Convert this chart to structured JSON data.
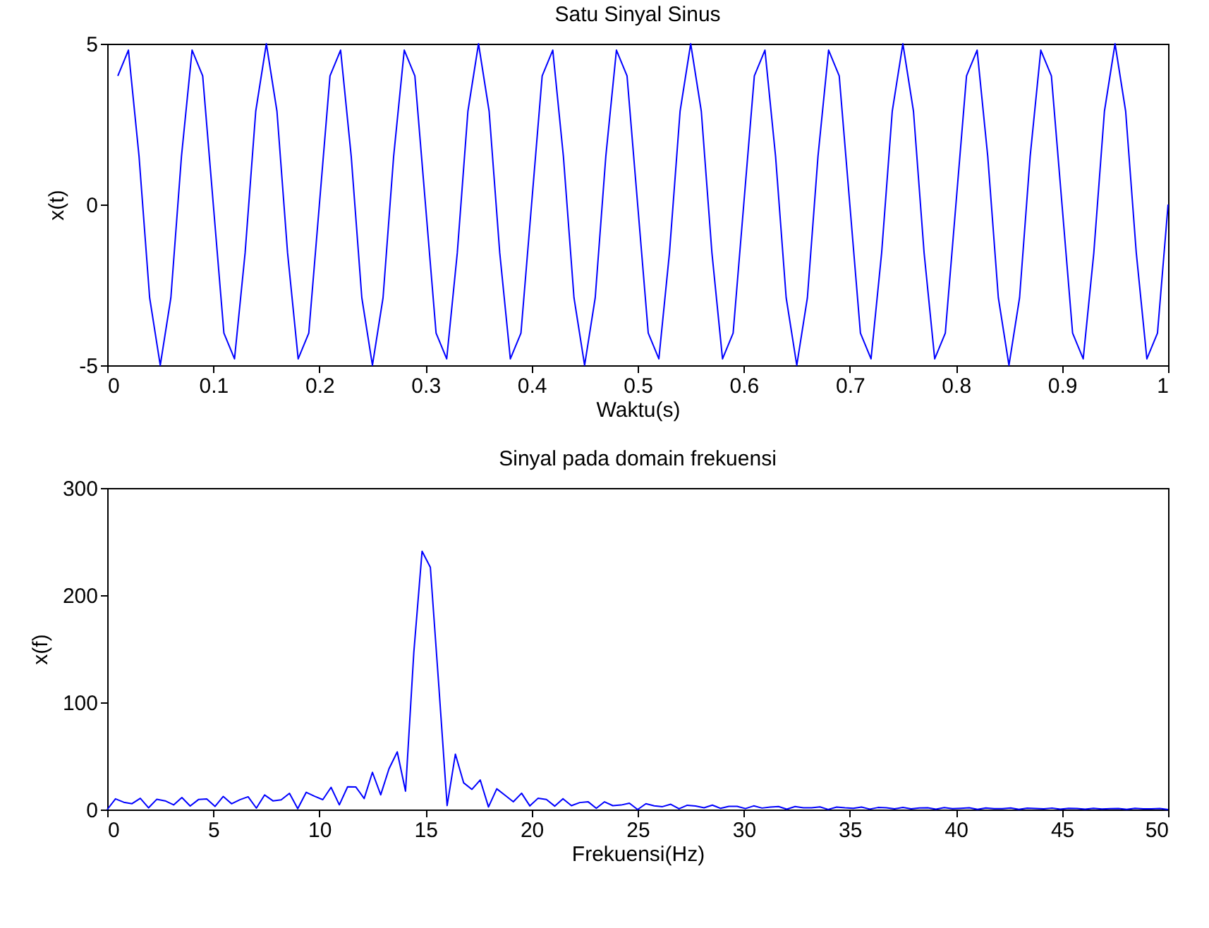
{
  "chart_data": [
    {
      "type": "line",
      "title": "Satu Sinyal Sinus",
      "xlabel": "Waktu(s)",
      "ylabel": "x(t)",
      "x": [
        0.01,
        0.02,
        0.03,
        0.04,
        0.05,
        0.06,
        0.07,
        0.08,
        0.09,
        0.1,
        0.11,
        0.12,
        0.13,
        0.14,
        0.15,
        0.16,
        0.17,
        0.18,
        0.19,
        0.2,
        0.21,
        0.22,
        0.23,
        0.24,
        0.25,
        0.26,
        0.27,
        0.28,
        0.29,
        0.3,
        0.31,
        0.32,
        0.33,
        0.34,
        0.35,
        0.36,
        0.37,
        0.38,
        0.39,
        0.4,
        0.41,
        0.42,
        0.43,
        0.44,
        0.45,
        0.46,
        0.47,
        0.48,
        0.49,
        0.5,
        0.51,
        0.52,
        0.53,
        0.54,
        0.55,
        0.56,
        0.57,
        0.58,
        0.59,
        0.6,
        0.61,
        0.62,
        0.63,
        0.64,
        0.65,
        0.66,
        0.67,
        0.68,
        0.69,
        0.7,
        0.71,
        0.72,
        0.73,
        0.74,
        0.75,
        0.76,
        0.77,
        0.78,
        0.79,
        0.8,
        0.81,
        0.82,
        0.83,
        0.84,
        0.85,
        0.86,
        0.87,
        0.88,
        0.89,
        0.9,
        0.91,
        0.92,
        0.93,
        0.94,
        0.95,
        0.96,
        0.97,
        0.98,
        0.99,
        1.0
      ],
      "series": [
        {
          "color": "#0000ff",
          "values": [
            4.0,
            4.8,
            1.5,
            -2.9,
            -5,
            -2.9,
            1.5,
            4.8,
            4.0,
            0,
            -4.0,
            -4.8,
            -1.5,
            2.9,
            5,
            2.9,
            -1.5,
            -4.8,
            -4.0,
            0,
            4.0,
            4.8,
            1.5,
            -2.9,
            -5,
            -2.9,
            1.5,
            4.8,
            4.0,
            0,
            -4.0,
            -4.8,
            -1.5,
            2.9,
            5,
            2.9,
            -1.5,
            -4.8,
            -4.0,
            0,
            4.0,
            4.8,
            1.5,
            -2.9,
            -5,
            -2.9,
            1.5,
            4.8,
            4.0,
            0,
            -4.0,
            -4.8,
            -1.5,
            2.9,
            5,
            2.9,
            -1.5,
            -4.8,
            -4.0,
            0,
            4.0,
            4.8,
            1.5,
            -2.9,
            -5,
            -2.9,
            1.5,
            4.8,
            4.0,
            0,
            -4.0,
            -4.8,
            -1.5,
            2.9,
            5,
            2.9,
            -1.5,
            -4.8,
            -4.0,
            0,
            4.0,
            4.8,
            1.5,
            -2.9,
            -5,
            -2.9,
            1.5,
            4.8,
            4.0,
            0,
            -4.0,
            -4.8,
            -1.5,
            2.9,
            5,
            2.9,
            -1.5,
            -4.8,
            -4.0,
            0
          ]
        }
      ],
      "xlim": [
        0,
        1
      ],
      "xticks": [
        0,
        0.1,
        0.2,
        0.3,
        0.4,
        0.5,
        0.6,
        0.7,
        0.8,
        0.9,
        1
      ],
      "ylim": [
        -5,
        5
      ],
      "yticks": [
        -5,
        0,
        5
      ],
      "legend": false
    },
    {
      "type": "line",
      "title": "Sinyal pada domain frekuensi",
      "xlabel": "Frekuensi(Hz)",
      "ylabel": "x(f)",
      "x": [
        0,
        0.39,
        0.78,
        1.17,
        1.56,
        1.95,
        2.34,
        2.73,
        3.13,
        3.52,
        3.91,
        4.3,
        4.69,
        5.08,
        5.47,
        5.86,
        6.25,
        6.64,
        7.03,
        7.42,
        7.81,
        8.2,
        8.59,
        8.98,
        9.38,
        9.77,
        10.16,
        10.55,
        10.94,
        11.33,
        11.72,
        12.11,
        12.5,
        12.89,
        13.28,
        13.67,
        14.06,
        14.45,
        14.84,
        15.23,
        15.63,
        16.02,
        16.41,
        16.8,
        17.19,
        17.58,
        17.97,
        18.36,
        18.75,
        19.14,
        19.53,
        19.92,
        20.31,
        20.7,
        21.09,
        21.48,
        21.88,
        22.27,
        22.66,
        23.05,
        23.44,
        23.83,
        24.22,
        24.61,
        25,
        25.39,
        25.78,
        26.17,
        26.56,
        26.95,
        27.34,
        27.73,
        28.13,
        28.52,
        28.91,
        29.3,
        29.69,
        30.08,
        30.47,
        30.86,
        31.25,
        31.64,
        32.03,
        32.42,
        32.81,
        33.2,
        33.59,
        33.98,
        34.38,
        34.77,
        35.16,
        35.55,
        35.94,
        36.33,
        36.72,
        37.11,
        37.5,
        37.89,
        38.28,
        38.67,
        39.06,
        39.45,
        39.84,
        40.23,
        40.63,
        41.02,
        41.41,
        41.8,
        42.19,
        42.58,
        42.97,
        43.36,
        43.75,
        44.14,
        44.53,
        44.92,
        45.31,
        45.7,
        46.09,
        46.48,
        46.88,
        47.27,
        47.66,
        48.05,
        48.44,
        48.83,
        49.22,
        49.61,
        50
      ],
      "series": [
        {
          "color": "#0000ff",
          "values": [
            0,
            10.0,
            6.8,
            5.5,
            10.5,
            1.6,
            9.6,
            8.1,
            4.3,
            11.2,
            3.3,
            9.3,
            9.8,
            2.9,
            12.2,
            5.4,
            9.1,
            11.9,
            1.3,
            13.6,
            8.1,
            9.0,
            15.1,
            0.8,
            16.1,
            12.4,
            9.2,
            20.7,
            4.4,
            21.2,
            21.0,
            10.3,
            34.7,
            13.7,
            38.0,
            53.8,
            17.1,
            146.5,
            241,
            226,
            115,
            3.7,
            51.7,
            24.9,
            18.8,
            27.6,
            2.4,
            19.3,
            13.3,
            7.2,
            15.2,
            3.4,
            10.6,
            9.4,
            3.2,
            10.1,
            3.6,
            6.5,
            7.3,
            1.1,
            7.2,
            3.6,
            4.2,
            5.9,
            0,
            5.4,
            3.5,
            2.7,
            4.9,
            0.7,
            4.0,
            3.3,
            1.6,
            4.1,
            1.1,
            3.0,
            3.0,
            0.9,
            3.4,
            1.4,
            2.3,
            2.8,
            0.3,
            2.8,
            1.6,
            1.6,
            2.5,
            0.1,
            2.3,
            1.6,
            1.1,
            2.3,
            0.4,
            1.9,
            1.6,
            0.7,
            2.0,
            0.7,
            1.5,
            1.6,
            0.4,
            1.8,
            0.8,
            1.2,
            1.6,
            0.1,
            1.5,
            0.9,
            0.9,
            1.5,
            0.1,
            1.3,
            1.0,
            0.6,
            1.4,
            0.3,
            1.1,
            1.0,
            0.4,
            1.2,
            0.5,
            0.9,
            1.0,
            0.2,
            1.1,
            0.6,
            0.7,
            1.0,
            0
          ]
        }
      ],
      "xlim": [
        0,
        50
      ],
      "xticks": [
        0,
        5,
        10,
        15,
        20,
        25,
        30,
        35,
        40,
        45,
        50
      ],
      "ylim": [
        0,
        300
      ],
      "yticks": [
        0,
        100,
        200,
        300
      ],
      "legend": false
    }
  ]
}
